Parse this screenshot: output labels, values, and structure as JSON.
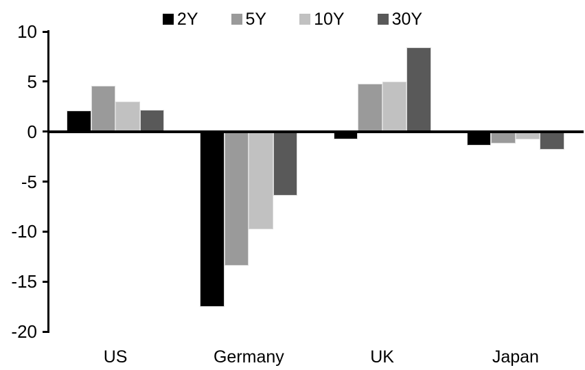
{
  "chart_data": {
    "type": "bar",
    "title": "",
    "categories": [
      "US",
      "Germany",
      "UK",
      "Japan"
    ],
    "series": [
      {
        "name": "2Y",
        "color": "#000000",
        "values": [
          2.1,
          -17.5,
          -0.8,
          -1.4
        ]
      },
      {
        "name": "5Y",
        "color": "#9a9a9a",
        "values": [
          4.6,
          -13.4,
          4.8,
          -1.2
        ]
      },
      {
        "name": "10Y",
        "color": "#c1c1c1",
        "values": [
          3.0,
          -9.8,
          5.0,
          -0.8
        ]
      },
      {
        "name": "30Y",
        "color": "#595959",
        "values": [
          2.2,
          -6.4,
          8.4,
          -1.8
        ]
      }
    ],
    "ylim": [
      -20,
      10
    ],
    "yticks": [
      10,
      5,
      0,
      -5,
      -10,
      -15,
      -20
    ],
    "legend_position": "top-center",
    "grid": false,
    "axis_color": "#000000",
    "bar_border_color": "#d9d9d9",
    "background_color": "#ffffff"
  }
}
